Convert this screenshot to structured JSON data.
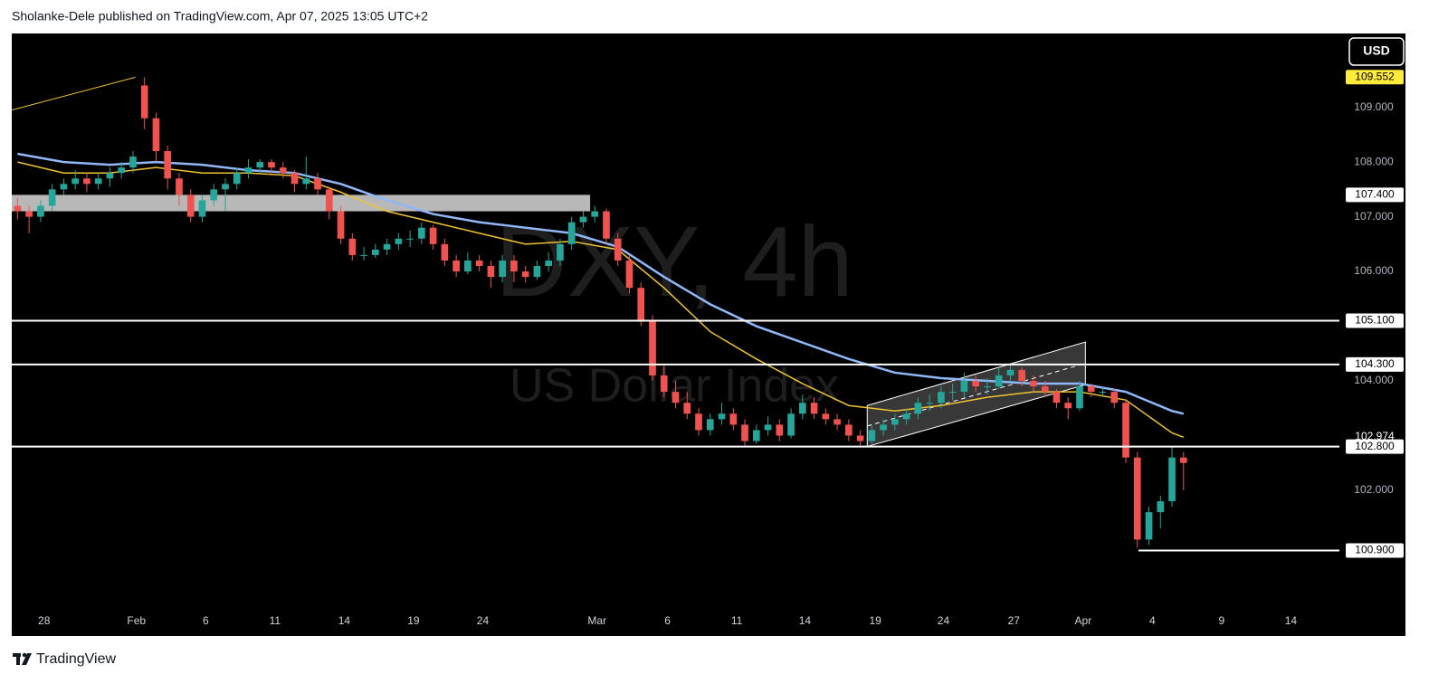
{
  "header": "Sholanke-Dele published on TradingView.com, Apr 07, 2025 13:05 UTC+2",
  "footer": "TradingView",
  "chart_data": {
    "type": "candlestick",
    "symbol": "DXY, 4h",
    "description": "US Dollar Index",
    "currency": "USD",
    "up_color": "#26a69a",
    "down_color": "#ef5350",
    "xlim": [
      -0.5,
      114.5
    ],
    "xticks": [
      {
        "value": 2.3,
        "label": "28"
      },
      {
        "value": 10.3,
        "label": "Feb"
      },
      {
        "value": 16.3,
        "label": "6"
      },
      {
        "value": 22.3,
        "label": "11"
      },
      {
        "value": 28.3,
        "label": "14"
      },
      {
        "value": 34.3,
        "label": "19"
      },
      {
        "value": 40.3,
        "label": "24"
      },
      {
        "value": 50.2,
        "label": "Mar"
      },
      {
        "value": 56.3,
        "label": "6"
      },
      {
        "value": 62.3,
        "label": "11"
      },
      {
        "value": 68.2,
        "label": "14"
      },
      {
        "value": 74.3,
        "label": "19"
      },
      {
        "value": 80.2,
        "label": "24"
      },
      {
        "value": 86.3,
        "label": "27"
      },
      {
        "value": 92.3,
        "label": "Apr"
      },
      {
        "value": 98.3,
        "label": "4"
      },
      {
        "value": 104.3,
        "label": "9"
      },
      {
        "value": 110.3,
        "label": "14"
      }
    ],
    "ylim": [
      99.8,
      110.35
    ],
    "yticks": [
      {
        "value": 109,
        "label": "109.000"
      },
      {
        "value": 108,
        "label": "108.000"
      },
      {
        "value": 107,
        "label": "107.000"
      },
      {
        "value": 106,
        "label": "106.000"
      },
      {
        "value": 104,
        "label": "104.000"
      },
      {
        "value": 102,
        "label": "102.000"
      }
    ],
    "grid": false,
    "candles": [
      [
        107.2,
        107.35,
        106.95,
        107.1
      ],
      [
        107.1,
        107.2,
        106.7,
        107.0
      ],
      [
        107.0,
        107.3,
        106.9,
        107.2
      ],
      [
        107.2,
        107.6,
        107.1,
        107.5
      ],
      [
        107.5,
        107.7,
        107.4,
        107.6
      ],
      [
        107.6,
        107.85,
        107.5,
        107.7
      ],
      [
        107.7,
        107.8,
        107.45,
        107.6
      ],
      [
        107.6,
        107.8,
        107.5,
        107.7
      ],
      [
        107.7,
        107.9,
        107.55,
        107.8
      ],
      [
        107.8,
        108.0,
        107.7,
        107.9
      ],
      [
        107.9,
        108.2,
        107.8,
        108.1
      ],
      [
        109.4,
        109.55,
        108.6,
        108.8
      ],
      [
        108.8,
        108.9,
        108.0,
        108.2
      ],
      [
        108.2,
        108.3,
        107.5,
        107.7
      ],
      [
        107.7,
        107.8,
        107.2,
        107.4
      ],
      [
        107.4,
        107.5,
        106.9,
        107.0
      ],
      [
        107.0,
        107.4,
        106.9,
        107.3
      ],
      [
        107.3,
        107.6,
        107.2,
        107.5
      ],
      [
        107.5,
        107.7,
        107.1,
        107.6
      ],
      [
        107.6,
        107.9,
        107.5,
        107.8
      ],
      [
        107.8,
        108.05,
        107.7,
        107.9
      ],
      [
        107.9,
        108.05,
        107.8,
        108.0
      ],
      [
        108.0,
        108.05,
        107.75,
        107.9
      ],
      [
        107.9,
        108.0,
        107.7,
        107.8
      ],
      [
        107.8,
        107.85,
        107.45,
        107.6
      ],
      [
        107.6,
        108.1,
        107.5,
        107.7
      ],
      [
        107.7,
        107.8,
        107.4,
        107.5
      ],
      [
        107.5,
        107.55,
        106.95,
        107.1
      ],
      [
        107.1,
        107.2,
        106.5,
        106.6
      ],
      [
        106.6,
        106.7,
        106.2,
        106.3
      ],
      [
        106.3,
        106.45,
        106.2,
        106.3
      ],
      [
        106.3,
        106.5,
        106.25,
        106.4
      ],
      [
        106.4,
        106.6,
        106.3,
        106.5
      ],
      [
        106.5,
        106.7,
        106.4,
        106.6
      ],
      [
        106.6,
        106.75,
        106.45,
        106.6
      ],
      [
        106.6,
        106.9,
        106.5,
        106.8
      ],
      [
        106.8,
        106.85,
        106.4,
        106.5
      ],
      [
        106.5,
        106.6,
        106.1,
        106.2
      ],
      [
        106.2,
        106.3,
        105.9,
        106.0
      ],
      [
        106.0,
        106.35,
        105.95,
        106.2
      ],
      [
        106.2,
        106.3,
        106.0,
        106.1
      ],
      [
        106.1,
        106.2,
        105.7,
        105.9
      ],
      [
        105.9,
        106.3,
        105.8,
        106.2
      ],
      [
        106.2,
        106.3,
        105.8,
        106.0
      ],
      [
        106.0,
        106.1,
        105.8,
        105.9
      ],
      [
        105.9,
        106.2,
        105.85,
        106.1
      ],
      [
        106.1,
        106.35,
        106.0,
        106.2
      ],
      [
        106.2,
        106.6,
        106.1,
        106.5
      ],
      [
        106.5,
        107.0,
        106.4,
        106.9
      ],
      [
        106.9,
        107.1,
        106.8,
        107.0
      ],
      [
        107.0,
        107.2,
        106.9,
        107.1
      ],
      [
        107.1,
        107.15,
        106.5,
        106.6
      ],
      [
        106.6,
        106.7,
        106.1,
        106.2
      ],
      [
        106.2,
        106.3,
        105.6,
        105.7
      ],
      [
        105.7,
        105.8,
        105.0,
        105.1
      ],
      [
        105.1,
        105.2,
        104.0,
        104.1
      ],
      [
        104.1,
        104.3,
        103.7,
        103.8
      ],
      [
        103.8,
        104.0,
        103.5,
        103.6
      ],
      [
        103.6,
        103.8,
        103.3,
        103.4
      ],
      [
        103.4,
        103.5,
        103.0,
        103.1
      ],
      [
        103.1,
        103.4,
        103.0,
        103.3
      ],
      [
        103.3,
        103.6,
        103.2,
        103.4
      ],
      [
        103.4,
        103.5,
        103.1,
        103.2
      ],
      [
        103.2,
        103.3,
        102.8,
        102.9
      ],
      [
        102.9,
        103.2,
        102.85,
        103.1
      ],
      [
        103.1,
        103.35,
        103.0,
        103.2
      ],
      [
        103.2,
        103.3,
        102.9,
        103.0
      ],
      [
        103.0,
        103.5,
        102.95,
        103.4
      ],
      [
        103.4,
        103.75,
        103.3,
        103.6
      ],
      [
        103.6,
        103.7,
        103.3,
        103.4
      ],
      [
        103.4,
        103.5,
        103.2,
        103.3
      ],
      [
        103.3,
        103.4,
        103.1,
        103.2
      ],
      [
        103.2,
        103.3,
        102.9,
        103.0
      ],
      [
        103.0,
        103.1,
        102.8,
        102.9
      ],
      [
        102.9,
        103.2,
        102.85,
        103.1
      ],
      [
        103.1,
        103.3,
        103.0,
        103.2
      ],
      [
        103.2,
        103.4,
        103.1,
        103.3
      ],
      [
        103.3,
        103.5,
        103.2,
        103.4
      ],
      [
        103.4,
        103.7,
        103.3,
        103.6
      ],
      [
        103.6,
        103.75,
        103.45,
        103.6
      ],
      [
        103.6,
        103.9,
        103.5,
        103.8
      ],
      [
        103.8,
        103.95,
        103.65,
        103.8
      ],
      [
        103.8,
        104.15,
        103.7,
        104.0
      ],
      [
        104.0,
        104.1,
        103.8,
        103.9
      ],
      [
        103.9,
        104.05,
        103.75,
        103.9
      ],
      [
        103.9,
        104.25,
        103.85,
        104.1
      ],
      [
        104.1,
        104.3,
        104.0,
        104.2
      ],
      [
        104.2,
        104.25,
        103.9,
        104.0
      ],
      [
        104.0,
        104.1,
        103.8,
        103.9
      ],
      [
        103.9,
        104.0,
        103.7,
        103.8
      ],
      [
        103.8,
        103.85,
        103.5,
        103.6
      ],
      [
        103.6,
        103.7,
        103.3,
        103.5
      ],
      [
        103.5,
        104.0,
        103.45,
        103.9
      ],
      [
        103.9,
        103.95,
        103.7,
        103.8
      ],
      [
        103.8,
        103.9,
        103.7,
        103.8
      ],
      [
        103.8,
        103.85,
        103.5,
        103.6
      ],
      [
        103.6,
        103.65,
        102.5,
        102.6
      ],
      [
        102.6,
        102.7,
        100.95,
        101.1
      ],
      [
        101.1,
        101.7,
        101.0,
        101.6
      ],
      [
        101.6,
        101.9,
        101.3,
        101.8
      ],
      [
        101.8,
        102.8,
        101.7,
        102.6
      ],
      [
        102.6,
        102.7,
        102.0,
        102.5
      ]
    ],
    "lines": [
      {
        "color": "#90b8f8",
        "x": [
          0,
          4,
          8,
          12,
          16,
          20,
          24,
          28,
          32,
          36,
          40,
          44,
          48,
          52,
          56,
          60,
          64,
          68,
          72,
          76,
          80,
          84,
          88,
          92,
          96,
          100,
          101
        ],
        "values": [
          108.15,
          108.0,
          107.95,
          108.0,
          107.95,
          107.85,
          107.8,
          107.6,
          107.3,
          107.05,
          106.9,
          106.8,
          106.7,
          106.45,
          105.9,
          105.4,
          105.0,
          104.7,
          104.4,
          104.15,
          104.05,
          104.0,
          103.95,
          103.95,
          103.8,
          103.45,
          103.4
        ]
      },
      {
        "color": "#f0c330",
        "x": [
          0,
          4,
          8,
          12,
          16,
          20,
          24,
          28,
          32,
          36,
          40,
          44,
          48,
          52,
          56,
          60,
          64,
          68,
          72,
          76,
          80,
          84,
          88,
          92,
          96,
          100,
          101
        ],
        "values": [
          108.0,
          107.8,
          107.8,
          107.9,
          107.8,
          107.8,
          107.75,
          107.45,
          107.1,
          106.9,
          106.7,
          106.5,
          106.55,
          106.4,
          105.7,
          104.9,
          104.4,
          103.95,
          103.55,
          103.45,
          103.55,
          103.7,
          103.8,
          103.8,
          103.65,
          103.05,
          102.97
        ]
      }
    ],
    "trendline": {
      "color": "#f0c330",
      "x": [
        -0.5,
        10.2
      ],
      "values": [
        108.95,
        109.55
      ]
    },
    "zone": {
      "low": 107.1,
      "high": 107.4,
      "to": 49.6,
      "label": "107.400"
    },
    "channel": {
      "x": [
        73.6,
        92.5
      ],
      "lower": [
        102.8,
        103.93
      ],
      "upper": [
        103.55,
        104.71
      ]
    },
    "levels": [
      {
        "value": 105.1,
        "label": "105.100",
        "from": -0.5
      },
      {
        "value": 104.3,
        "label": "104.300",
        "from": -0.5
      },
      {
        "value": 102.8,
        "label": "102.800",
        "from": -0.5
      },
      {
        "value": 100.9,
        "label": "100.900",
        "from": 97.1
      }
    ],
    "price_tags": [
      {
        "value": 109.552,
        "label": "109.552",
        "color": "#ffeb3b"
      },
      {
        "value": 102.974,
        "label": "102.974"
      }
    ]
  }
}
